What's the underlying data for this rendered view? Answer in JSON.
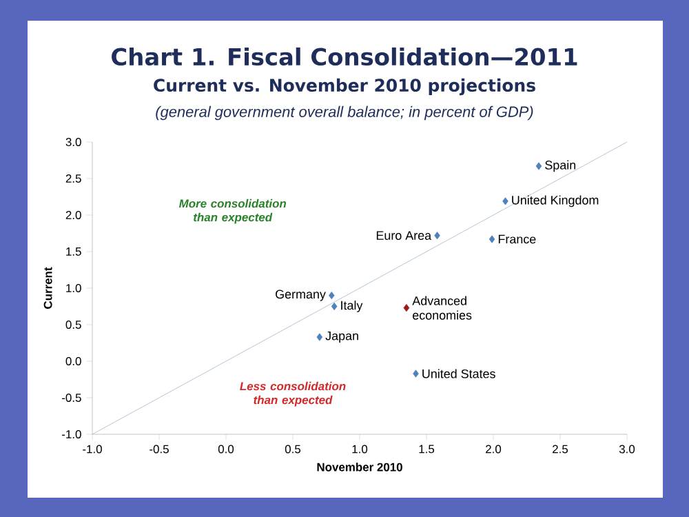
{
  "chart_data": {
    "type": "scatter",
    "title": "Chart 1. Fiscal Consolidation—2011",
    "subtitle": "Current vs. November 2010 projections",
    "annotations": [
      "(general government overall balance; in percent of GDP)",
      "More consolidation than expected",
      "Less consolidation than expected"
    ],
    "xlabel": "November 2010",
    "ylabel": "Current",
    "marker": "diamond",
    "xlim": [
      -1.0,
      3.0
    ],
    "xticks": [
      {
        "value": -1,
        "label": "-1.0"
      },
      {
        "value": -0.5,
        "label": "-0.5"
      },
      {
        "value": 0,
        "label": "0.0"
      },
      {
        "value": 0.5,
        "label": "0.5"
      },
      {
        "value": 1,
        "label": "1.0"
      },
      {
        "value": 1.5,
        "label": "1.5"
      },
      {
        "value": 2,
        "label": "2.0"
      },
      {
        "value": 2.5,
        "label": "2.5"
      },
      {
        "value": 3,
        "label": "3.0"
      }
    ],
    "ylim": [
      -1.0,
      3.0
    ],
    "yticks": [
      {
        "value": -1,
        "label": "-1.0"
      },
      {
        "value": -0.5,
        "label": "-0.5"
      },
      {
        "value": 0,
        "label": "0.0"
      },
      {
        "value": 0.5,
        "label": "0.5"
      },
      {
        "value": 1,
        "label": "1.0"
      },
      {
        "value": 1.5,
        "label": "1.5"
      },
      {
        "value": 2,
        "label": "2.0"
      },
      {
        "value": 2.5,
        "label": "2.5"
      },
      {
        "value": 3,
        "label": "3.0"
      }
    ],
    "series": [
      {
        "type": "line",
        "marker": "none",
        "color": "#9fb8cc",
        "x": [
          -1.0,
          3.0
        ],
        "values": [
          -1.0,
          3.0
        ]
      },
      {
        "name": "Spain",
        "color": "#4f81bd",
        "x": [
          2.34
        ],
        "values": [
          2.67
        ]
      },
      {
        "name": "United Kingdom",
        "color": "#4f81bd",
        "x": [
          2.09
        ],
        "values": [
          2.19
        ]
      },
      {
        "name": "Euro Area",
        "color": "#4f81bd",
        "x": [
          1.58
        ],
        "values": [
          1.72
        ]
      },
      {
        "name": "France",
        "color": "#4f81bd",
        "x": [
          1.99
        ],
        "values": [
          1.67
        ]
      },
      {
        "name": "Germany",
        "color": "#4f81bd",
        "x": [
          0.79
        ],
        "values": [
          0.9
        ]
      },
      {
        "name": "Italy",
        "color": "#4f81bd",
        "x": [
          0.81
        ],
        "values": [
          0.75
        ]
      },
      {
        "name": "Japan",
        "color": "#4f81bd",
        "x": [
          0.7
        ],
        "values": [
          0.33
        ]
      },
      {
        "name": "Advanced economies",
        "color": "#a01818",
        "x": [
          1.35
        ],
        "values": [
          0.73
        ]
      },
      {
        "name": "United States",
        "color": "#4f81bd",
        "x": [
          1.42
        ],
        "values": [
          -0.17
        ]
      }
    ]
  }
}
